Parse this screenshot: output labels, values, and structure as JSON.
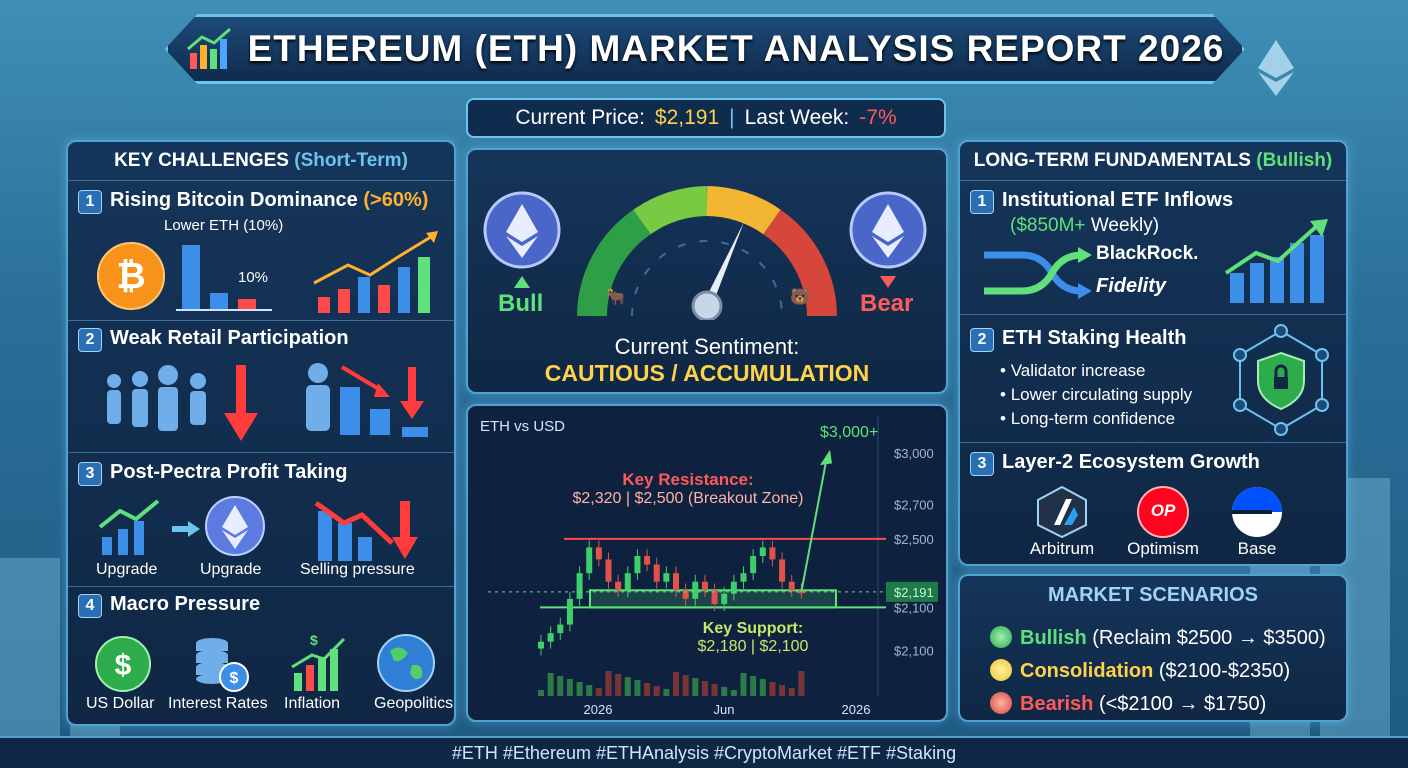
{
  "title": "ETHEREUM (ETH) MARKET ANALYSIS REPORT 2026",
  "price": {
    "label": "Current Price:",
    "value": "$2,191",
    "week_label": "Last Week:",
    "week_value": "-7%"
  },
  "challenges": {
    "title": "KEY CHALLENGES",
    "title_suffix": "(Short-Term)",
    "i1": {
      "num": "1",
      "title": "Rising Bitcoin Dominance",
      "hl": "(>60%)",
      "sub": "Lower ETH (10%)",
      "pct": "10%"
    },
    "i2": {
      "num": "2",
      "title": "Weak Retail Participation"
    },
    "i3": {
      "num": "3",
      "title": "Post-Pectra Profit Taking",
      "a": "Upgrade",
      "b": "Upgrade",
      "c": "Selling pressure"
    },
    "i4": {
      "num": "4",
      "title": "Macro Pressure",
      "a": "US Dollar",
      "b": "Interest Rates",
      "c": "Inflation",
      "d": "Geopolitics"
    }
  },
  "sentiment": {
    "bull": "Bull",
    "bear": "Bear",
    "label": "Current Sentiment:",
    "value": "CAUTIOUS / ACCUMULATION"
  },
  "chart_data": {
    "type": "candlestick",
    "title": "ETH vs USD",
    "xticks": [
      "2026",
      "Jun",
      "2026"
    ],
    "yticks": [
      "$3,000",
      "$2,700",
      "$2,500",
      "$2,191",
      "$2,100",
      "$2,100"
    ],
    "resistance_label": "Key Resistance:",
    "resistance_value": "$2,320 | $2,500 (Breakout Zone)",
    "support_label": "Key Support:",
    "support_value": "$2,180 | $2,100",
    "target": "$3,000+",
    "closes": [
      1900,
      1950,
      2000,
      2150,
      2300,
      2450,
      2380,
      2250,
      2200,
      2300,
      2400,
      2350,
      2250,
      2300,
      2200,
      2150,
      2250,
      2200,
      2120,
      2180,
      2250,
      2300,
      2400,
      2450,
      2380,
      2250,
      2200,
      2191
    ]
  },
  "fundamentals": {
    "title": "LONG-TERM FUNDAMENTALS",
    "title_suffix": "(Bullish)",
    "i1": {
      "num": "1",
      "title": "Institutional ETF Inflows",
      "sub": "($850M+",
      "sub2": "Weekly)",
      "a": "BlackRock.",
      "b": "Fidelity"
    },
    "i2": {
      "num": "2",
      "title": "ETH Staking Health",
      "b1": "Validator increase",
      "b2": "Lower circulating supply",
      "b3": "Long-term confidence"
    },
    "i3": {
      "num": "3",
      "title": "Layer-2 Ecosystem Growth",
      "a": "Arbitrum",
      "b": "Optimism",
      "c": "Base",
      "op": "OP"
    }
  },
  "scenarios": {
    "title": "MARKET SCENARIOS",
    "s1": {
      "name": "Bullish",
      "text": "(Reclaim $2500 → $3500)"
    },
    "s2": {
      "name": "Consolidation",
      "text": "($2100-$2350)"
    },
    "s3": {
      "name": "Bearish",
      "text": "(<$2100 → $1750)"
    }
  },
  "footer": "#ETH #Ethereum #ETHAnalysis #CryptoMarket #ETF #Staking",
  "colors": {
    "accent": "#6cc3ef",
    "gold": "#ffd24a",
    "green": "#5fe07a",
    "red": "#ff5a5a"
  }
}
